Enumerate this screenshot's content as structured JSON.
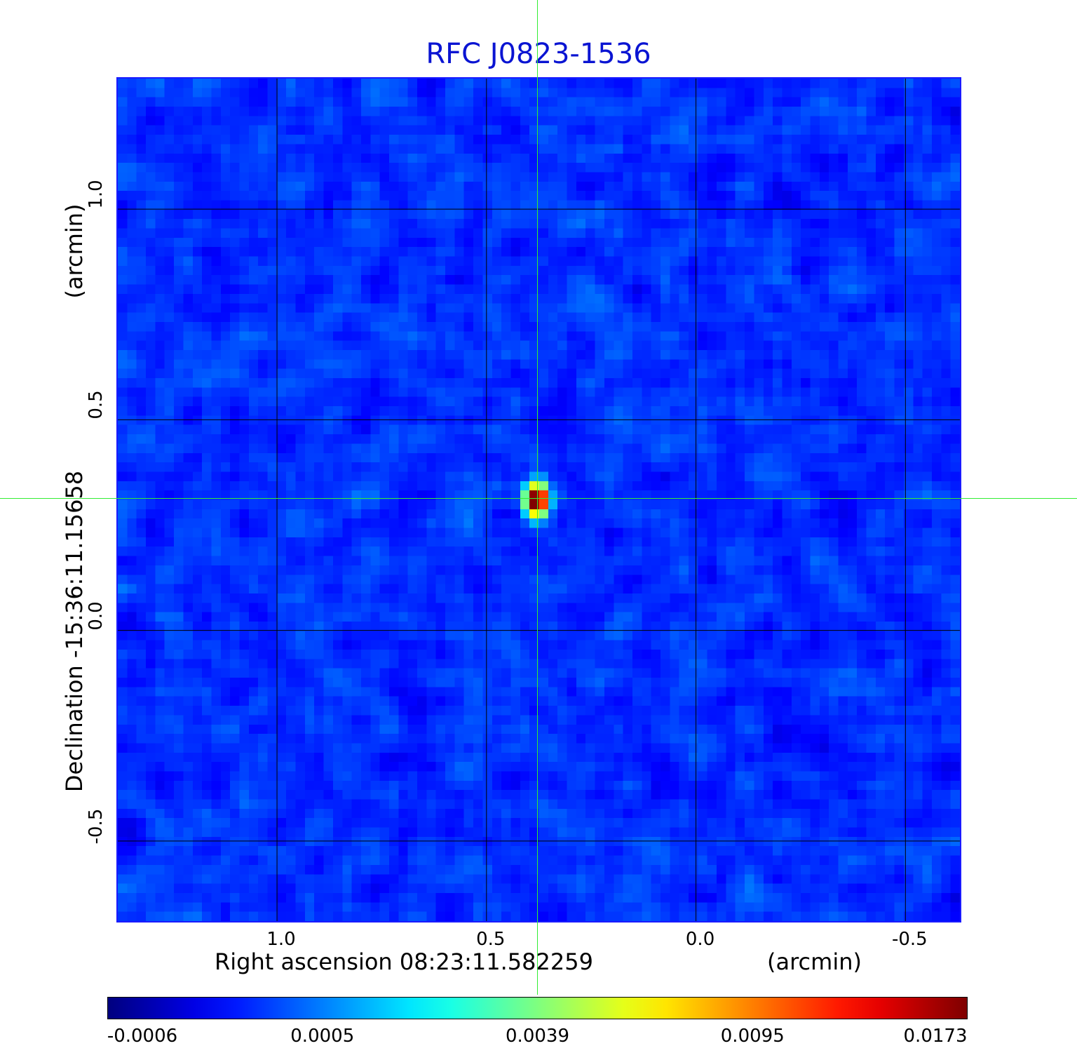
{
  "chart_data": {
    "type": "heatmap",
    "title": "RFC J0823-1536",
    "xlabel": "Right ascension  08:23:11.582259",
    "xlabel_unit": "(arcmin)",
    "ylabel": "Declination  -15:36:11.15658",
    "ylabel_unit": "(arcmin)",
    "x_range_arcmin": [
      1.38,
      -0.63
    ],
    "y_range_arcmin": [
      -0.69,
      1.31
    ],
    "x_ticks": [
      {
        "value": 1.0,
        "label": "1.0"
      },
      {
        "value": 0.5,
        "label": "0.5"
      },
      {
        "value": 0.0,
        "label": "0.0"
      },
      {
        "value": -0.5,
        "label": "-0.5"
      }
    ],
    "y_ticks": [
      {
        "value": 1.0,
        "label": "1.0"
      },
      {
        "value": 0.5,
        "label": "0.5"
      },
      {
        "value": 0.0,
        "label": "0.0"
      },
      {
        "value": -0.5,
        "label": "-0.5"
      }
    ],
    "grid": true,
    "source_peak": {
      "x_arcmin": 0.38,
      "y_arcmin": 0.31,
      "value": 0.0173
    },
    "crosshair": {
      "x_arcmin": 0.375,
      "y_arcmin": 0.31,
      "color": "#33ee33"
    },
    "colormap": "jet",
    "colorbar": {
      "ticks": [
        "-0.0006",
        "0.0005",
        "0.0039",
        "0.0095",
        "0.0173"
      ],
      "min": -0.0006,
      "max": 0.0173
    }
  },
  "colors": {
    "title": "#0a14d2",
    "frame": "#1a1aff",
    "grid": "#000000",
    "crosshair": "#33ee33"
  }
}
